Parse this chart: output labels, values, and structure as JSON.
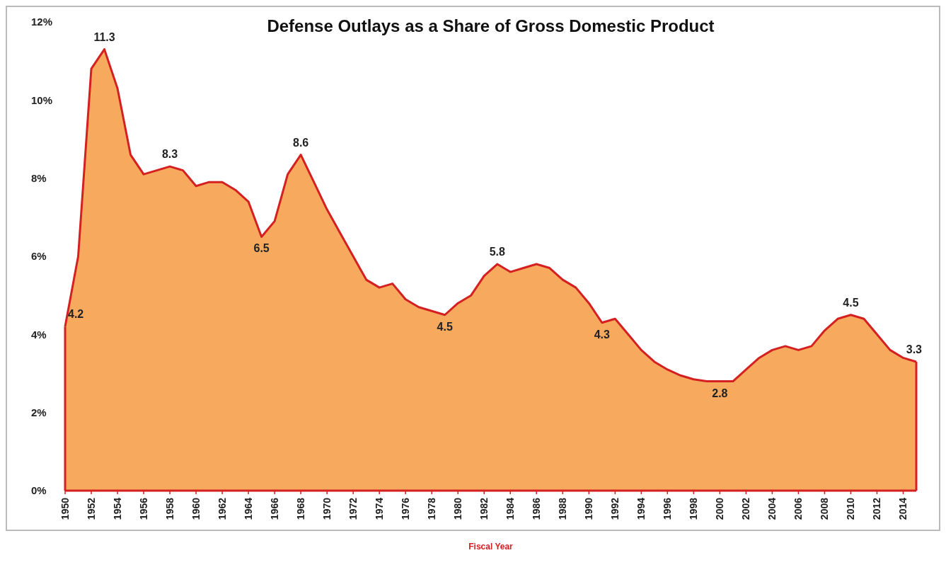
{
  "chart_data": {
    "type": "area",
    "title": "Defense Outlays as a Share of Gross Domestic Product",
    "xlabel": "Fiscal Year",
    "x": [
      1950,
      1951,
      1952,
      1953,
      1954,
      1955,
      1956,
      1957,
      1958,
      1959,
      1960,
      1961,
      1962,
      1963,
      1964,
      1965,
      1966,
      1967,
      1968,
      1969,
      1970,
      1971,
      1972,
      1973,
      1974,
      1975,
      1976,
      1977,
      1978,
      1979,
      1980,
      1981,
      1982,
      1983,
      1984,
      1985,
      1986,
      1987,
      1988,
      1989,
      1990,
      1991,
      1992,
      1993,
      1994,
      1995,
      1996,
      1997,
      1998,
      1999,
      2000,
      2001,
      2002,
      2003,
      2004,
      2005,
      2006,
      2007,
      2008,
      2009,
      2010,
      2011,
      2012,
      2013,
      2014,
      2015
    ],
    "series": [
      {
        "color": "#f7a95e",
        "values": [
          4.2,
          6.0,
          10.8,
          11.3,
          10.3,
          8.6,
          8.1,
          8.2,
          8.3,
          8.2,
          7.8,
          7.9,
          7.9,
          7.7,
          7.4,
          6.5,
          6.9,
          8.1,
          8.6,
          7.9,
          7.2,
          6.6,
          6.0,
          5.4,
          5.2,
          5.3,
          4.9,
          4.7,
          4.6,
          4.5,
          4.8,
          5.0,
          5.5,
          5.8,
          5.6,
          5.7,
          5.8,
          5.7,
          5.4,
          5.2,
          4.8,
          4.3,
          4.4,
          4.0,
          3.6,
          3.3,
          3.1,
          2.95,
          2.85,
          2.8,
          2.8,
          2.8,
          3.1,
          3.4,
          3.6,
          3.7,
          3.6,
          3.7,
          4.1,
          4.4,
          4.5,
          4.4,
          4.0,
          3.6,
          3.4,
          3.3
        ]
      }
    ],
    "xlim": [
      1950,
      2015
    ],
    "xticks": [
      1950,
      1952,
      1954,
      1956,
      1958,
      1960,
      1962,
      1964,
      1966,
      1968,
      1970,
      1972,
      1974,
      1976,
      1978,
      1980,
      1982,
      1984,
      1986,
      1988,
      1990,
      1992,
      1994,
      1996,
      1998,
      2000,
      2002,
      2004,
      2006,
      2008,
      2010,
      2012,
      2014
    ],
    "ylim": [
      0,
      12
    ],
    "yticks": [
      {
        "value": 0,
        "label": "0%"
      },
      {
        "value": 2,
        "label": "2%"
      },
      {
        "value": 4,
        "label": "4%"
      },
      {
        "value": 6,
        "label": "6%"
      },
      {
        "value": 8,
        "label": "8%"
      },
      {
        "value": 10,
        "label": "10%"
      },
      {
        "value": 12,
        "label": "12%"
      }
    ],
    "grid": false,
    "annotations": [
      {
        "text": "4.2",
        "x": 1950,
        "y": 4.2
      },
      {
        "text": "11.3",
        "x": 1953,
        "y": 11.3
      },
      {
        "text": "8.3",
        "x": 1958,
        "y": 8.3
      },
      {
        "text": "6.5",
        "x": 1965,
        "y": 6.5
      },
      {
        "text": "8.6",
        "x": 1968,
        "y": 8.6
      },
      {
        "text": "4.5",
        "x": 1979,
        "y": 4.5
      },
      {
        "text": "5.8",
        "x": 1983,
        "y": 5.8
      },
      {
        "text": "4.3",
        "x": 1991,
        "y": 4.3
      },
      {
        "text": "2.8",
        "x": 2000,
        "y": 2.8
      },
      {
        "text": "4.5",
        "x": 2010,
        "y": 4.5
      },
      {
        "text": "3.3",
        "x": 2015,
        "y": 3.3
      }
    ]
  }
}
